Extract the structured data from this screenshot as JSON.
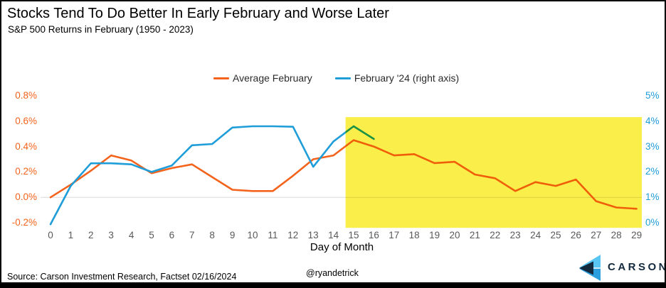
{
  "header": {
    "title": "Stocks Tend To Do Better In Early February and Worse Later",
    "subtitle": "S&P 500 Returns in February (1950 - 2023)"
  },
  "legend": [
    {
      "label": "Average February",
      "color": "#F4631C"
    },
    {
      "label": "February '24 (right axis)",
      "color": "#1F9DD9"
    }
  ],
  "chart_data": {
    "type": "line",
    "title": "Stocks Tend To Do Better In Early February and Worse Later",
    "subtitle": "S&P 500 Returns in February (1950 - 2023)",
    "xlabel": "Day of Month",
    "x_ticks": [
      "0",
      "1",
      "2",
      "3",
      "4",
      "5",
      "6",
      "7",
      "8",
      "9",
      "10",
      "11",
      "12",
      "13",
      "14",
      "15",
      "16",
      "17",
      "18",
      "19",
      "20",
      "21",
      "22",
      "23",
      "24",
      "25",
      "26",
      "27",
      "28",
      "29"
    ],
    "left_axis": {
      "ticks": [
        "0.8%",
        "0.6%",
        "0.4%",
        "0.2%",
        "0.0%",
        "-0.2%"
      ],
      "max": 0.8,
      "min": -0.2,
      "color": "#F4631C",
      "unit": "%"
    },
    "right_axis": {
      "ticks": [
        "5%",
        "4%",
        "3%",
        "2%",
        "1%",
        "0%"
      ],
      "max": 5,
      "min": 0,
      "color": "#1F9DD9",
      "unit": "%"
    },
    "gridline_value_left": 0.0,
    "gridline_color": "#D9D9D9",
    "gridline_color_in_highlight": "#D8CC42",
    "series": [
      {
        "name": "Average February",
        "axis": "left",
        "color": "#F4631C",
        "color_in_highlight": "#EF5E08",
        "x": [
          0,
          1,
          2,
          3,
          4,
          5,
          6,
          7,
          8,
          9,
          10,
          11,
          12,
          13,
          14,
          15,
          16,
          17,
          18,
          19,
          20,
          21,
          22,
          23,
          24,
          25,
          26,
          27,
          28,
          29
        ],
        "values": [
          0.0,
          0.1,
          0.21,
          0.33,
          0.29,
          0.19,
          0.23,
          0.26,
          0.16,
          0.06,
          0.05,
          0.05,
          0.17,
          0.3,
          0.33,
          0.45,
          0.4,
          0.33,
          0.34,
          0.27,
          0.28,
          0.18,
          0.15,
          0.05,
          0.12,
          0.09,
          0.14,
          -0.03,
          -0.08,
          -0.09
        ]
      },
      {
        "name": "February '24 (right axis)",
        "axis": "right",
        "color": "#1F9DD9",
        "color_in_highlight": "#1B9143",
        "x": [
          0,
          1,
          2,
          3,
          4,
          5,
          6,
          7,
          8,
          9,
          10,
          11,
          12,
          13,
          14,
          15,
          16
        ],
        "values": [
          -0.06,
          1.45,
          2.34,
          2.34,
          2.3,
          2.0,
          2.25,
          3.05,
          3.1,
          3.75,
          3.8,
          3.8,
          3.78,
          2.2,
          3.2,
          3.8,
          3.3
        ]
      }
    ],
    "highlight": {
      "label": "second half of month highlighted",
      "from_day": 14.6,
      "to_day": 29.26,
      "top_left_value": 0.632,
      "bottom_left_value": -0.24,
      "color": "#FAEE4B"
    }
  },
  "footer": {
    "source": "Source: Carson Investment Research, Factset 02/16/2024",
    "handle": "@ryandetrick",
    "brand": "CARSON"
  }
}
